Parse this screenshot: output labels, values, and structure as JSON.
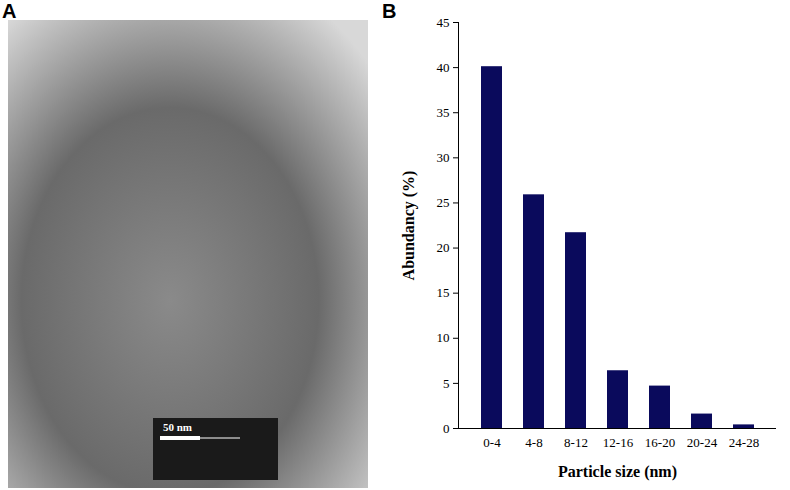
{
  "micrograph": {
    "panel_label": "A",
    "scale_bar_label": "50 nm"
  },
  "chart_data": {
    "panel_label": "B",
    "type": "bar",
    "x_label": "Particle size (nm)",
    "y_label": "Abundancy (%)",
    "categories": [
      "0-4",
      "4-8",
      "8-12",
      "12-16",
      "16-20",
      "20-24",
      "24-28"
    ],
    "values": [
      40.1,
      25.9,
      21.7,
      6.4,
      4.7,
      1.6,
      0.4
    ],
    "color": "#0a0a5c",
    "ylim": [
      0,
      45
    ],
    "yticks": [
      0,
      5,
      10,
      15,
      20,
      25,
      30,
      35,
      40,
      45
    ],
    "grid": false
  }
}
